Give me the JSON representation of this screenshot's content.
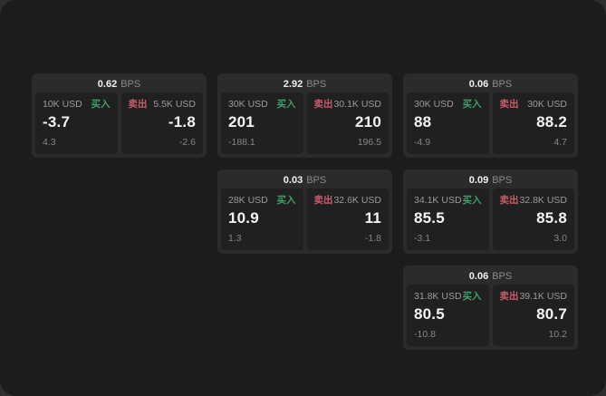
{
  "labels": {
    "bps_unit": "BPS",
    "buy": "买入",
    "sell": "卖出"
  },
  "colors": {
    "buy_green": "#3f9f6a",
    "sell_red": "#c95c6a",
    "page_bg": "#1c1c1d",
    "card_bg": "#2b2b2c",
    "panel_bg": "#202021"
  },
  "cards": [
    {
      "row": 1,
      "col": 1,
      "bps": "0.62",
      "buy": {
        "notional": "10K USD",
        "price": "-3.7",
        "delta": "4.3"
      },
      "sell": {
        "notional": "5.5K USD",
        "price": "-1.8",
        "delta": "-2.6"
      }
    },
    {
      "row": 1,
      "col": 2,
      "bps": "2.92",
      "buy": {
        "notional": "30K USD",
        "price": "201",
        "delta": "-188.1"
      },
      "sell": {
        "notional": "30.1K USD",
        "price": "210",
        "delta": "196.5"
      }
    },
    {
      "row": 1,
      "col": 3,
      "bps": "0.06",
      "buy": {
        "notional": "30K USD",
        "price": "88",
        "delta": "-4.9"
      },
      "sell": {
        "notional": "30K USD",
        "price": "88.2",
        "delta": "4.7"
      }
    },
    {
      "row": 2,
      "col": 2,
      "bps": "0.03",
      "buy": {
        "notional": "28K USD",
        "price": "10.9",
        "delta": "1.3"
      },
      "sell": {
        "notional": "32.6K USD",
        "price": "11",
        "delta": "-1.8"
      }
    },
    {
      "row": 2,
      "col": 3,
      "bps": "0.09",
      "buy": {
        "notional": "34.1K USD",
        "price": "85.5",
        "delta": "-3.1"
      },
      "sell": {
        "notional": "32.8K USD",
        "price": "85.8",
        "delta": "3.0"
      }
    },
    {
      "row": 3,
      "col": 3,
      "bps": "0.06",
      "buy": {
        "notional": "31.8K USD",
        "price": "80.5",
        "delta": "-10.8"
      },
      "sell": {
        "notional": "39.1K USD",
        "price": "80.7",
        "delta": "10.2"
      }
    }
  ]
}
